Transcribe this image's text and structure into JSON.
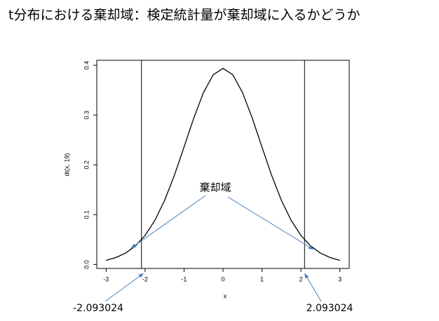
{
  "chart_data": {
    "type": "line",
    "title": "t分布における棄却域：検定統計量が棄却域に入るかどうか",
    "xlabel": "x",
    "ylabel": "dt(x, 19)",
    "x": [
      -3,
      -2.75,
      -2.5,
      -2.25,
      -2,
      -1.75,
      -1.5,
      -1.25,
      -1,
      -0.75,
      -0.5,
      -0.25,
      0,
      0.25,
      0.5,
      0.75,
      1,
      1.25,
      1.5,
      1.75,
      2,
      2.25,
      2.5,
      2.75,
      3
    ],
    "values": [
      0.0081,
      0.0138,
      0.0229,
      0.0371,
      0.0583,
      0.0884,
      0.1285,
      0.1786,
      0.2357,
      0.294,
      0.3454,
      0.381,
      0.3937,
      0.381,
      0.3454,
      0.294,
      0.2357,
      0.1786,
      0.1285,
      0.0884,
      0.0583,
      0.0371,
      0.0229,
      0.0138,
      0.0081
    ],
    "color": "#000000",
    "xlim": [
      -3.24,
      3.24
    ],
    "ylim": [
      -0.008,
      0.41
    ],
    "xticks": [
      -3,
      -2,
      -1,
      0,
      1,
      2,
      3
    ],
    "yticks": [
      {
        "value": 0,
        "label": "0.0"
      },
      0.1,
      0.2,
      0.3,
      0.4
    ],
    "vlines": [
      {
        "value": -2.093024,
        "label": "-2.093024"
      },
      {
        "value": 2.093024,
        "label": "2.093024"
      }
    ],
    "annotation": "棄却域",
    "arrow_color": "#4a7ebb"
  }
}
